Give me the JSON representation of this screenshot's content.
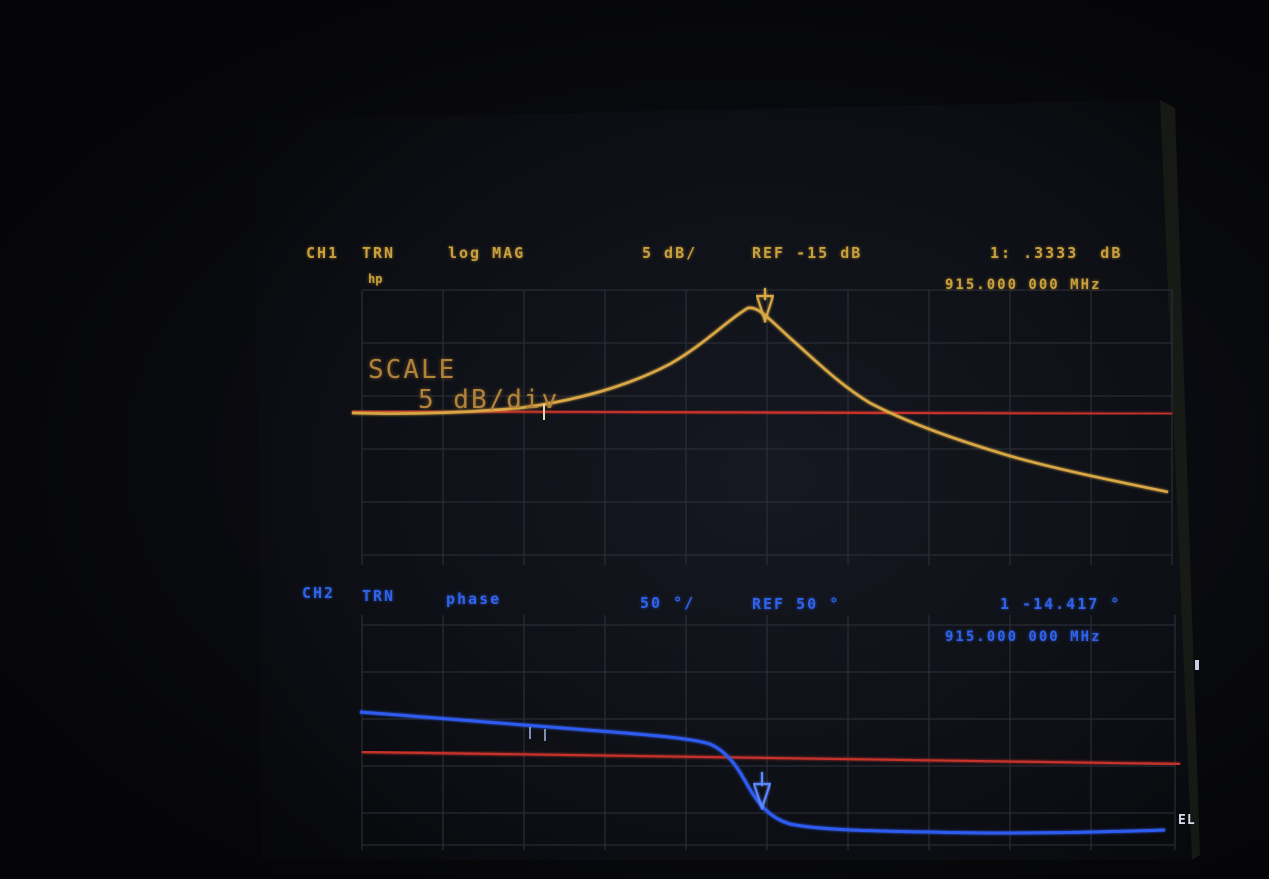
{
  "ch1": {
    "channel": "CH1",
    "mode": "TRN",
    "format": "log MAG",
    "scale": "5 dB/",
    "ref": "REF -15 dB",
    "marker_value": "1: .3333  dB",
    "marker_freq": "915.000 000 MHz",
    "hp_logo": "hp",
    "scale_title": "SCALE",
    "scale_value": "5 dB/div",
    "colors": {
      "text": "#c8a03c",
      "trace": "#d9a845",
      "ref_line": "#c7312b"
    }
  },
  "ch2": {
    "channel": "CH2",
    "mode": "TRN",
    "format": "phase",
    "scale": "50 °/",
    "ref": "REF 50 °",
    "marker_value": "1 -14.417 °",
    "marker_freq": "915.000 000 MHz",
    "side_label": "EL",
    "colors": {
      "text": "#2f63ee",
      "trace": "#2d5cf0",
      "ref_line": "#c7312b"
    }
  },
  "markers": {
    "ch1_marker": "1",
    "ch2_marker": "1"
  }
}
